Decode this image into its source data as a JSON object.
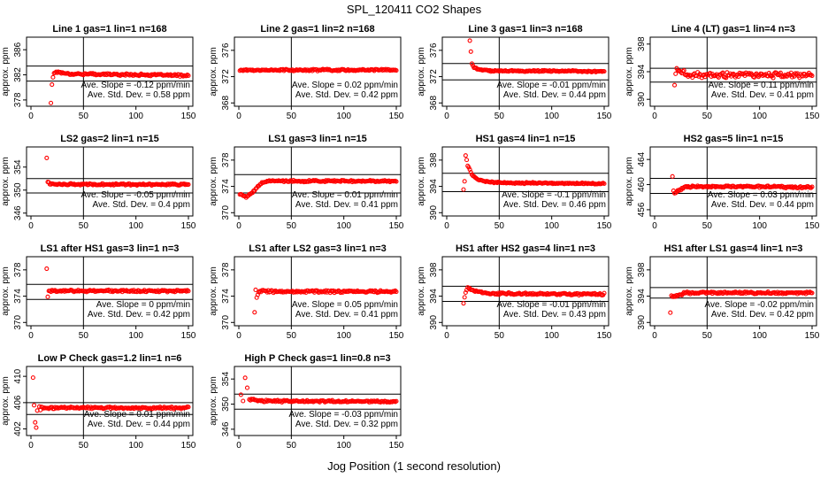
{
  "figure": {
    "title": "SPL_120411  CO2 Shapes",
    "xlabel": "Jog Position (1 second resolution)"
  },
  "colors": {
    "points": "#ff0000",
    "axes": "#000000",
    "background": "#ffffff"
  },
  "chart_data": [
    {
      "type": "scatter",
      "title": "Line 1 gas=1 lin=1 n=168",
      "ylabel": "approx. ppm",
      "xlim": [
        0,
        150
      ],
      "ylim": [
        377,
        388
      ],
      "xticks": [
        0,
        50,
        100,
        150
      ],
      "yticks": [
        378,
        382,
        386
      ],
      "hlines": [
        383.4,
        381.0
      ],
      "vline": 50,
      "mean": 382.2,
      "start": 19,
      "shape": [
        [
          0,
          377.5
        ],
        [
          1,
          380.5
        ],
        [
          2,
          381.6
        ],
        [
          3,
          382.3
        ],
        [
          5,
          382.5
        ]
      ],
      "noise": 0.12,
      "end_drift": -0.3,
      "annotations": [
        "Ave. Slope = -0.12 ppm/min",
        "Ave. Std. Dev. = 0.58 ppm"
      ]
    },
    {
      "type": "scatter",
      "title": "Line 2 gas=1 lin=2 n=168",
      "ylabel": "approx. ppm",
      "xlim": [
        0,
        150
      ],
      "ylim": [
        367.5,
        378
      ],
      "xticks": [
        0,
        50,
        100,
        150
      ],
      "yticks": [
        368,
        372,
        376
      ],
      "hlines": [],
      "vline": 50,
      "mean": 373.0,
      "start": 1,
      "shape": [],
      "noise": 0.1,
      "end_drift": 0,
      "annotations": [
        "Ave. Slope = 0.02 ppm/min",
        "Ave. Std. Dev. = 0.42 ppm"
      ]
    },
    {
      "type": "scatter",
      "title": "Line 3 gas=1 lin=3 n=168",
      "ylabel": "approx. ppm",
      "xlim": [
        0,
        150
      ],
      "ylim": [
        367.5,
        378
      ],
      "xticks": [
        0,
        50,
        100,
        150
      ],
      "yticks": [
        368,
        372,
        376
      ],
      "hlines": [
        374.0,
        371.5
      ],
      "vline": 50,
      "mean": 372.9,
      "start": 22,
      "shape": [
        [
          0,
          377.5
        ],
        [
          2,
          374.0
        ],
        [
          4,
          373.4
        ],
        [
          8,
          373.1
        ]
      ],
      "noise": 0.08,
      "end_drift": -0.1,
      "annotations": [
        "Ave. Slope = -0.01 ppm/min",
        "Ave. Std. Dev. = 0.44 ppm"
      ]
    },
    {
      "type": "scatter",
      "title": "Line 4 (LT) gas=1 lin=4 n=3",
      "ylabel": "approx. ppm",
      "xlim": [
        0,
        150
      ],
      "ylim": [
        389,
        399
      ],
      "xticks": [
        0,
        50,
        100,
        150
      ],
      "yticks": [
        390,
        394,
        398
      ],
      "hlines": [
        394.5,
        392.5
      ],
      "vline": 50,
      "mean": 393.5,
      "start": 19,
      "shape": [
        [
          0,
          392.0
        ],
        [
          1,
          393.8
        ],
        [
          2,
          394.2
        ]
      ],
      "noise": 0.28,
      "end_drift": 0,
      "annotations": [
        "Ave. Slope = 0.11 ppm/min",
        "Ave. Std. Dev. = 0.41 ppm"
      ]
    },
    {
      "type": "scatter",
      "title": "LS2 gas=2 lin=1 n=15",
      "ylabel": "approx. ppm",
      "xlim": [
        0,
        150
      ],
      "ylim": [
        345.5,
        357.5
      ],
      "xticks": [
        0,
        50,
        100,
        150
      ],
      "yticks": [
        346,
        350,
        354
      ],
      "hlines": [
        352.0,
        349.5
      ],
      "vline": 50,
      "mean": 351.0,
      "start": 15,
      "shape": [
        [
          0,
          355.5
        ],
        [
          1,
          351.4
        ],
        [
          3,
          351.1
        ]
      ],
      "noise": 0.12,
      "end_drift": 0,
      "annotations": [
        "Ave. Slope = -0.05 ppm/min",
        "Ave. Std. Dev. = 0.4 ppm"
      ]
    },
    {
      "type": "scatter",
      "title": "LS1 gas=3 lin=1 n=15",
      "ylabel": "approx. ppm",
      "xlim": [
        0,
        150
      ],
      "ylim": [
        369.5,
        380
      ],
      "xticks": [
        0,
        50,
        100,
        150
      ],
      "yticks": [
        370,
        374,
        378
      ],
      "hlines": [
        375.8,
        373.0
      ],
      "vline": 50,
      "mean": 374.8,
      "start": 1,
      "shape": [
        [
          0,
          372.8
        ],
        [
          6,
          372.4
        ],
        [
          11,
          372.9
        ],
        [
          15,
          373.6
        ],
        [
          20,
          374.5
        ],
        [
          28,
          374.8
        ]
      ],
      "noise": 0.1,
      "end_drift": 0,
      "annotations": [
        "Ave. Slope = 0.01 ppm/min",
        "Ave. Std. Dev. = 0.41 ppm"
      ]
    },
    {
      "type": "scatter",
      "title": "HS1 gas=4 lin=1 n=15",
      "ylabel": "approx. ppm",
      "xlim": [
        0,
        150
      ],
      "ylim": [
        389.5,
        400
      ],
      "xticks": [
        0,
        50,
        100,
        150
      ],
      "yticks": [
        390,
        394,
        398
      ],
      "hlines": [
        396.0,
        393.2
      ],
      "vline": 50,
      "mean": 394.6,
      "start": 16,
      "shape": [
        [
          0,
          393.5
        ],
        [
          1,
          394.8
        ],
        [
          2,
          398.8
        ],
        [
          4,
          397.2
        ],
        [
          8,
          395.8
        ],
        [
          14,
          395.0
        ],
        [
          25,
          394.7
        ]
      ],
      "noise": 0.08,
      "end_drift": -0.2,
      "annotations": [
        "Ave. Slope = -0.1 ppm/min",
        "Ave. Std. Dev. = 0.46 ppm"
      ]
    },
    {
      "type": "scatter",
      "title": "HS2 gas=5 lin=1 n=15",
      "ylabel": "approx. ppm",
      "xlim": [
        0,
        150
      ],
      "ylim": [
        455,
        466
      ],
      "xticks": [
        0,
        50,
        100,
        150
      ],
      "yticks": [
        456,
        460,
        464
      ],
      "hlines": [
        461.0,
        458.6
      ],
      "vline": 50,
      "mean": 459.7,
      "start": 17,
      "shape": [
        [
          0,
          461.2
        ],
        [
          1,
          459.0
        ],
        [
          2,
          458.6
        ],
        [
          5,
          459.0
        ],
        [
          12,
          459.6
        ]
      ],
      "noise": 0.12,
      "end_drift": -0.1,
      "annotations": [
        "Ave. Slope = 0.03 ppm/min",
        "Ave. Std. Dev. = 0.44 ppm"
      ]
    },
    {
      "type": "scatter",
      "title": "LS1 after HS1 gas=3 lin=1 n=3",
      "ylabel": "approx. ppm",
      "xlim": [
        0,
        150
      ],
      "ylim": [
        369.5,
        380
      ],
      "xticks": [
        0,
        50,
        100,
        150
      ],
      "yticks": [
        370,
        374,
        378
      ],
      "hlines": [
        375.8,
        373.5
      ],
      "vline": 50,
      "mean": 374.8,
      "start": 15,
      "shape": [
        [
          0,
          378.2
        ],
        [
          1,
          374.0
        ],
        [
          2,
          374.8
        ]
      ],
      "noise": 0.12,
      "end_drift": 0,
      "annotations": [
        "Ave. Slope = 0 ppm/min",
        "Ave. Std. Dev. = 0.42 ppm"
      ]
    },
    {
      "type": "scatter",
      "title": "LS1 after LS2 gas=3 lin=1 n=3",
      "ylabel": "approx. ppm",
      "xlim": [
        0,
        150
      ],
      "ylim": [
        369.5,
        380
      ],
      "xticks": [
        0,
        50,
        100,
        150
      ],
      "yticks": [
        370,
        374,
        378
      ],
      "hlines": [],
      "vline": 50,
      "mean": 374.7,
      "start": 15,
      "shape": [
        [
          0,
          371.5
        ],
        [
          1,
          375.0
        ],
        [
          2,
          373.8
        ],
        [
          3,
          374.3
        ],
        [
          6,
          374.8
        ]
      ],
      "noise": 0.12,
      "end_drift": 0,
      "annotations": [
        "Ave. Slope = 0.05 ppm/min",
        "Ave. Std. Dev. = 0.41 ppm"
      ]
    },
    {
      "type": "scatter",
      "title": "HS1 after HS2 gas=4 lin=1 n=3",
      "ylabel": "approx. ppm",
      "xlim": [
        0,
        150
      ],
      "ylim": [
        389.5,
        400
      ],
      "xticks": [
        0,
        50,
        100,
        150
      ],
      "yticks": [
        390,
        394,
        398
      ],
      "hlines": [
        395.5,
        393.2
      ],
      "vline": 50,
      "mean": 394.4,
      "start": 16,
      "shape": [
        [
          0,
          392.8
        ],
        [
          1,
          393.8
        ],
        [
          2,
          394.6
        ],
        [
          4,
          395.3
        ],
        [
          10,
          394.8
        ]
      ],
      "noise": 0.12,
      "end_drift": -0.1,
      "annotations": [
        "Ave. Slope = -0.01 ppm/min",
        "Ave. Std. Dev. = 0.43 ppm"
      ]
    },
    {
      "type": "scatter",
      "title": "HS1 after LS1 gas=4 lin=1 n=3",
      "ylabel": "approx. ppm",
      "xlim": [
        0,
        150
      ],
      "ylim": [
        389.5,
        400
      ],
      "xticks": [
        0,
        50,
        100,
        150
      ],
      "yticks": [
        390,
        394,
        398
      ],
      "hlines": [
        395.3,
        393.7
      ],
      "vline": 50,
      "mean": 394.5,
      "start": 15,
      "shape": [
        [
          0,
          391.5
        ],
        [
          1,
          394.0
        ],
        [
          2,
          393.8
        ]
      ],
      "noise": 0.12,
      "end_drift": 0,
      "annotations": [
        "Ave. Slope = -0.02 ppm/min",
        "Ave. Std. Dev. = 0.42 ppm"
      ]
    },
    {
      "type": "scatter",
      "title": "Low P Check gas=1.2 lin=1 n=6",
      "ylabel": "approx. ppm",
      "xlim": [
        0,
        150
      ],
      "ylim": [
        401,
        411.5
      ],
      "xticks": [
        0,
        50,
        100,
        150
      ],
      "yticks": [
        402,
        406,
        410
      ],
      "hlines": [
        406.0,
        404.2
      ],
      "vline": 50,
      "mean": 405.2,
      "start": 9,
      "shape": [
        [
          0,
          405.0
        ],
        [
          1,
          405.2
        ]
      ],
      "noise": 0.12,
      "end_drift": 0,
      "extra_points": [
        [
          2,
          409.8
        ],
        [
          3,
          405.6
        ],
        [
          4,
          403.0
        ],
        [
          5,
          402.2
        ],
        [
          6,
          404.8
        ],
        [
          8,
          405.4
        ]
      ],
      "annotations": [
        "Ave. Slope = 0.01 ppm/min",
        "Ave. Std. Dev. = 0.44 ppm"
      ]
    },
    {
      "type": "scatter",
      "title": "High P Check gas=1 lin=0.8 n=3",
      "ylabel": "approx. ppm",
      "xlim": [
        0,
        150
      ],
      "ylim": [
        345,
        356
      ],
      "xticks": [
        0,
        50,
        100,
        150
      ],
      "yticks": [
        346,
        350,
        354
      ],
      "hlines": [
        351.6,
        349.2
      ],
      "vline": 50,
      "mean": 350.5,
      "start": 10,
      "shape": [
        [
          0,
          350.8
        ]
      ],
      "noise": 0.12,
      "end_drift": -0.1,
      "extra_points": [
        [
          2,
          351.5
        ],
        [
          4,
          350.5
        ],
        [
          6,
          354.2
        ],
        [
          8,
          352.6
        ]
      ],
      "annotations": [
        "Ave. Slope = -0.03 ppm/min",
        "Ave. Std. Dev. = 0.32 ppm"
      ]
    }
  ]
}
